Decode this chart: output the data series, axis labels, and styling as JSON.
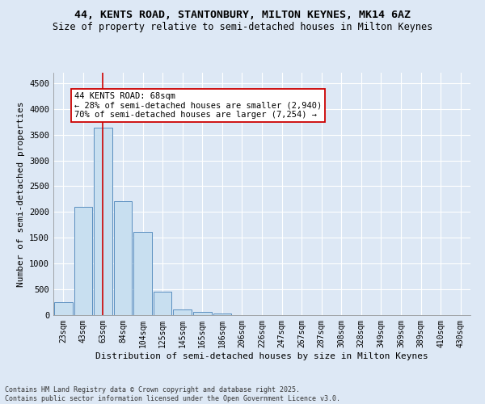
{
  "title1": "44, KENTS ROAD, STANTONBURY, MILTON KEYNES, MK14 6AZ",
  "title2": "Size of property relative to semi-detached houses in Milton Keynes",
  "xlabel": "Distribution of semi-detached houses by size in Milton Keynes",
  "ylabel": "Number of semi-detached properties",
  "footnote": "Contains HM Land Registry data © Crown copyright and database right 2025.\nContains public sector information licensed under the Open Government Licence v3.0.",
  "bin_labels": [
    "23sqm",
    "43sqm",
    "63sqm",
    "84sqm",
    "104sqm",
    "125sqm",
    "145sqm",
    "165sqm",
    "186sqm",
    "206sqm",
    "226sqm",
    "247sqm",
    "267sqm",
    "287sqm",
    "308sqm",
    "328sqm",
    "349sqm",
    "369sqm",
    "389sqm",
    "410sqm",
    "430sqm"
  ],
  "bar_heights": [
    250,
    2100,
    3630,
    2210,
    1620,
    460,
    105,
    60,
    35,
    0,
    0,
    0,
    0,
    0,
    0,
    0,
    0,
    0,
    0,
    0,
    0
  ],
  "bar_color": "#c8dff0",
  "bar_edge_color": "#5a8fc0",
  "property_bin_index": 2,
  "vline_color": "#cc0000",
  "annotation_text": "44 KENTS ROAD: 68sqm\n← 28% of semi-detached houses are smaller (2,940)\n70% of semi-detached houses are larger (7,254) →",
  "annotation_box_color": "#ffffff",
  "annotation_box_edge": "#cc0000",
  "ylim": [
    0,
    4700
  ],
  "yticks": [
    0,
    500,
    1000,
    1500,
    2000,
    2500,
    3000,
    3500,
    4000,
    4500
  ],
  "bg_color": "#dde8f5",
  "grid_color": "#ffffff",
  "title_fontsize": 9.5,
  "subtitle_fontsize": 8.5,
  "axis_label_fontsize": 8,
  "tick_fontsize": 7,
  "annot_fontsize": 7.5
}
